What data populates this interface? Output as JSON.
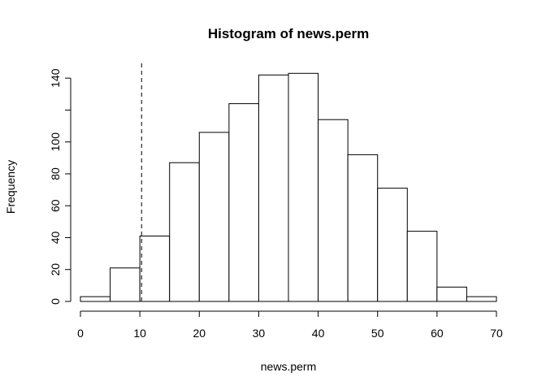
{
  "chart_data": {
    "type": "bar",
    "subtype": "histogram",
    "title": "Histogram of news.perm",
    "xlabel": "news.perm",
    "ylabel": "Frequency",
    "xlim": [
      0,
      70
    ],
    "ylim": [
      0,
      145
    ],
    "x_ticks": [
      0,
      10,
      20,
      30,
      40,
      50,
      60,
      70
    ],
    "y_ticks": [
      0,
      20,
      40,
      60,
      80,
      100,
      140
    ],
    "bins": [
      {
        "from": 0,
        "to": 5,
        "count": 3
      },
      {
        "from": 5,
        "to": 10,
        "count": 21
      },
      {
        "from": 10,
        "to": 15,
        "count": 41
      },
      {
        "from": 15,
        "to": 20,
        "count": 87
      },
      {
        "from": 20,
        "to": 25,
        "count": 106
      },
      {
        "from": 25,
        "to": 30,
        "count": 124
      },
      {
        "from": 30,
        "to": 35,
        "count": 142
      },
      {
        "from": 35,
        "to": 40,
        "count": 143
      },
      {
        "from": 40,
        "to": 45,
        "count": 114
      },
      {
        "from": 45,
        "to": 50,
        "count": 92
      },
      {
        "from": 50,
        "to": 55,
        "count": 71
      },
      {
        "from": 55,
        "to": 60,
        "count": 44
      },
      {
        "from": 60,
        "to": 65,
        "count": 9
      },
      {
        "from": 65,
        "to": 70,
        "count": 3
      }
    ],
    "reference_line": {
      "x": 10.3,
      "style": "dashed"
    },
    "bar_fill": "#ffffff",
    "bar_stroke": "#000000",
    "grid": false,
    "legend": "none"
  }
}
